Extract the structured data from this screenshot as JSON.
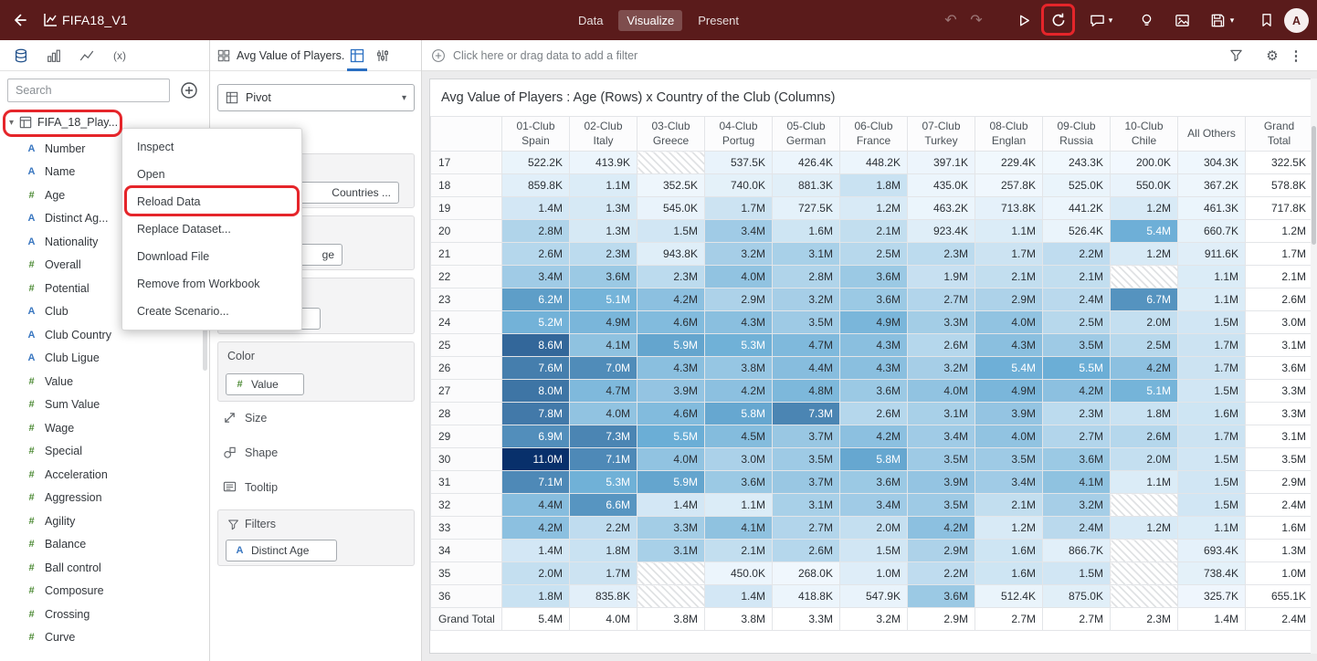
{
  "colors": {
    "header_bg": "#5a1b1b",
    "annotation_red": "#e5252a",
    "attribute_blue": "#3a77c0",
    "measure_green": "#4c8a34"
  },
  "header": {
    "title": "FIFA18_V1",
    "tabs": [
      "Data",
      "Visualize",
      "Present"
    ],
    "active_tab": "Visualize",
    "avatar": "A"
  },
  "left_panel": {
    "search_placeholder": "Search",
    "dataset_label": "FIFA_18_Play...",
    "fields": [
      {
        "icon": "A",
        "name": "Number"
      },
      {
        "icon": "A",
        "name": "Name"
      },
      {
        "icon": "#",
        "name": "Age"
      },
      {
        "icon": "A",
        "name": "Distinct Ag..."
      },
      {
        "icon": "A",
        "name": "Nationality"
      },
      {
        "icon": "#",
        "name": "Overall"
      },
      {
        "icon": "#",
        "name": "Potential"
      },
      {
        "icon": "A",
        "name": "Club"
      },
      {
        "icon": "A",
        "name": "Club Country"
      },
      {
        "icon": "A",
        "name": "Club Ligue"
      },
      {
        "icon": "#",
        "name": "Value"
      },
      {
        "icon": "#",
        "name": "Sum Value"
      },
      {
        "icon": "#",
        "name": "Wage"
      },
      {
        "icon": "#",
        "name": "Special"
      },
      {
        "icon": "#",
        "name": "Acceleration"
      },
      {
        "icon": "#",
        "name": "Aggression"
      },
      {
        "icon": "#",
        "name": "Agility"
      },
      {
        "icon": "#",
        "name": "Balance"
      },
      {
        "icon": "#",
        "name": "Ball control"
      },
      {
        "icon": "#",
        "name": "Composure"
      },
      {
        "icon": "#",
        "name": "Crossing"
      },
      {
        "icon": "#",
        "name": "Curve"
      }
    ]
  },
  "context_menu": {
    "items": [
      "Inspect",
      "Open",
      "Reload Data",
      "Replace Dataset...",
      "Download File",
      "Remove from Workbook",
      "Create Scenario..."
    ],
    "highlighted": "Reload Data"
  },
  "grammar_panel": {
    "tab_label": "Avg Value of Players...",
    "viz_type": "Pivot",
    "chips": {
      "top_partial": "Countries ...",
      "mid_partial": "ge"
    },
    "color": {
      "label": "Color",
      "chip_icon": "#",
      "chip_label": "Value"
    },
    "shelves": {
      "size": "Size",
      "shape": "Shape",
      "tooltip": "Tooltip"
    },
    "filters": {
      "label": "Filters",
      "chip_icon": "A",
      "chip_label": "Distinct Age"
    }
  },
  "filter_bar": {
    "prompt": "Click here or drag data to add a filter"
  },
  "chart_data": {
    "type": "heatmap",
    "title": "Avg Value of Players : Age (Rows) x Country of the Club (Columns)",
    "col_headers": [
      [
        "01-Club",
        "Spain"
      ],
      [
        "02-Club",
        "Italy"
      ],
      [
        "03-Club",
        "Greece"
      ],
      [
        "04-Club",
        "Portug"
      ],
      [
        "05-Club",
        "German"
      ],
      [
        "06-Club",
        "France"
      ],
      [
        "07-Club",
        "Turkey"
      ],
      [
        "08-Club",
        "Englan"
      ],
      [
        "09-Club",
        "Russia"
      ],
      [
        "10-Club",
        "Chile"
      ],
      [
        "All Others"
      ],
      [
        "Grand",
        "Total"
      ]
    ],
    "rows": [
      {
        "label": "17",
        "cells": [
          "522.2K",
          "413.9K",
          null,
          "537.5K",
          "426.4K",
          "448.2K",
          "397.1K",
          "229.4K",
          "243.3K",
          "200.0K",
          "304.3K",
          "322.5K"
        ]
      },
      {
        "label": "18",
        "cells": [
          "859.8K",
          "1.1M",
          "352.5K",
          "740.0K",
          "881.3K",
          "1.8M",
          "435.0K",
          "257.8K",
          "525.0K",
          "550.0K",
          "367.2K",
          "578.8K"
        ]
      },
      {
        "label": "19",
        "cells": [
          "1.4M",
          "1.3M",
          "545.0K",
          "1.7M",
          "727.5K",
          "1.2M",
          "463.2K",
          "713.8K",
          "441.2K",
          "1.2M",
          "461.3K",
          "717.8K"
        ]
      },
      {
        "label": "20",
        "cells": [
          "2.8M",
          "1.3M",
          "1.5M",
          "3.4M",
          "1.6M",
          "2.1M",
          "923.4K",
          "1.1M",
          "526.4K",
          "5.4M",
          "660.7K",
          "1.2M"
        ]
      },
      {
        "label": "21",
        "cells": [
          "2.6M",
          "2.3M",
          "943.8K",
          "3.2M",
          "3.1M",
          "2.5M",
          "2.3M",
          "1.7M",
          "2.2M",
          "1.2M",
          "911.6K",
          "1.7M"
        ]
      },
      {
        "label": "22",
        "cells": [
          "3.4M",
          "3.6M",
          "2.3M",
          "4.0M",
          "2.8M",
          "3.6M",
          "1.9M",
          "2.1M",
          "2.1M",
          null,
          "1.1M",
          "2.1M"
        ]
      },
      {
        "label": "23",
        "cells": [
          "6.2M",
          "5.1M",
          "4.2M",
          "2.9M",
          "3.2M",
          "3.6M",
          "2.7M",
          "2.9M",
          "2.4M",
          "6.7M",
          "1.1M",
          "2.6M"
        ]
      },
      {
        "label": "24",
        "cells": [
          "5.2M",
          "4.9M",
          "4.6M",
          "4.3M",
          "3.5M",
          "4.9M",
          "3.3M",
          "4.0M",
          "2.5M",
          "2.0M",
          "1.5M",
          "3.0M"
        ]
      },
      {
        "label": "25",
        "cells": [
          "8.6M",
          "4.1M",
          "5.9M",
          "5.3M",
          "4.7M",
          "4.3M",
          "2.6M",
          "4.3M",
          "3.5M",
          "2.5M",
          "1.7M",
          "3.1M"
        ]
      },
      {
        "label": "26",
        "cells": [
          "7.6M",
          "7.0M",
          "4.3M",
          "3.8M",
          "4.4M",
          "4.3M",
          "3.2M",
          "5.4M",
          "5.5M",
          "4.2M",
          "1.7M",
          "3.6M"
        ]
      },
      {
        "label": "27",
        "cells": [
          "8.0M",
          "4.7M",
          "3.9M",
          "4.2M",
          "4.8M",
          "3.6M",
          "4.0M",
          "4.9M",
          "4.2M",
          "5.1M",
          "1.5M",
          "3.3M"
        ]
      },
      {
        "label": "28",
        "cells": [
          "7.8M",
          "4.0M",
          "4.6M",
          "5.8M",
          "7.3M",
          "2.6M",
          "3.1M",
          "3.9M",
          "2.3M",
          "1.8M",
          "1.6M",
          "3.3M"
        ]
      },
      {
        "label": "29",
        "cells": [
          "6.9M",
          "7.3M",
          "5.5M",
          "4.5M",
          "3.7M",
          "4.2M",
          "3.4M",
          "4.0M",
          "2.7M",
          "2.6M",
          "1.7M",
          "3.1M"
        ]
      },
      {
        "label": "30",
        "cells": [
          "11.0M",
          "7.1M",
          "4.0M",
          "3.0M",
          "3.5M",
          "5.8M",
          "3.5M",
          "3.5M",
          "3.6M",
          "2.0M",
          "1.5M",
          "3.5M"
        ]
      },
      {
        "label": "31",
        "cells": [
          "7.1M",
          "5.3M",
          "5.9M",
          "3.6M",
          "3.7M",
          "3.6M",
          "3.9M",
          "3.4M",
          "4.1M",
          "1.1M",
          "1.5M",
          "2.9M"
        ]
      },
      {
        "label": "32",
        "cells": [
          "4.4M",
          "6.6M",
          "1.4M",
          "1.1M",
          "3.1M",
          "3.4M",
          "3.5M",
          "2.1M",
          "3.2M",
          null,
          "1.5M",
          "2.4M"
        ]
      },
      {
        "label": "33",
        "cells": [
          "4.2M",
          "2.2M",
          "3.3M",
          "4.1M",
          "2.7M",
          "2.0M",
          "4.2M",
          "1.2M",
          "2.4M",
          "1.2M",
          "1.1M",
          "1.6M"
        ]
      },
      {
        "label": "34",
        "cells": [
          "1.4M",
          "1.8M",
          "3.1M",
          "2.1M",
          "2.6M",
          "1.5M",
          "2.9M",
          "1.6M",
          "866.7K",
          null,
          "693.4K",
          "1.3M"
        ]
      },
      {
        "label": "35",
        "cells": [
          "2.0M",
          "1.7M",
          null,
          "450.0K",
          "268.0K",
          "1.0M",
          "2.2M",
          "1.6M",
          "1.5M",
          null,
          "738.4K",
          "1.0M"
        ]
      },
      {
        "label": "36",
        "cells": [
          "1.8M",
          "835.8K",
          null,
          "1.4M",
          "418.8K",
          "547.9K",
          "3.6M",
          "512.4K",
          "875.0K",
          null,
          "325.7K",
          "655.1K"
        ]
      },
      {
        "label": "Grand Total",
        "cells": [
          "5.4M",
          "4.0M",
          "3.8M",
          "3.8M",
          "3.3M",
          "3.2M",
          "2.9M",
          "2.7M",
          "2.7M",
          "2.3M",
          "1.4M",
          "2.4M"
        ]
      }
    ],
    "color_scale": {
      "light": "#f7fbff",
      "mid": "#6baed6",
      "dark": "#08306b",
      "max": 11000000
    },
    "null_style": "hatched"
  }
}
